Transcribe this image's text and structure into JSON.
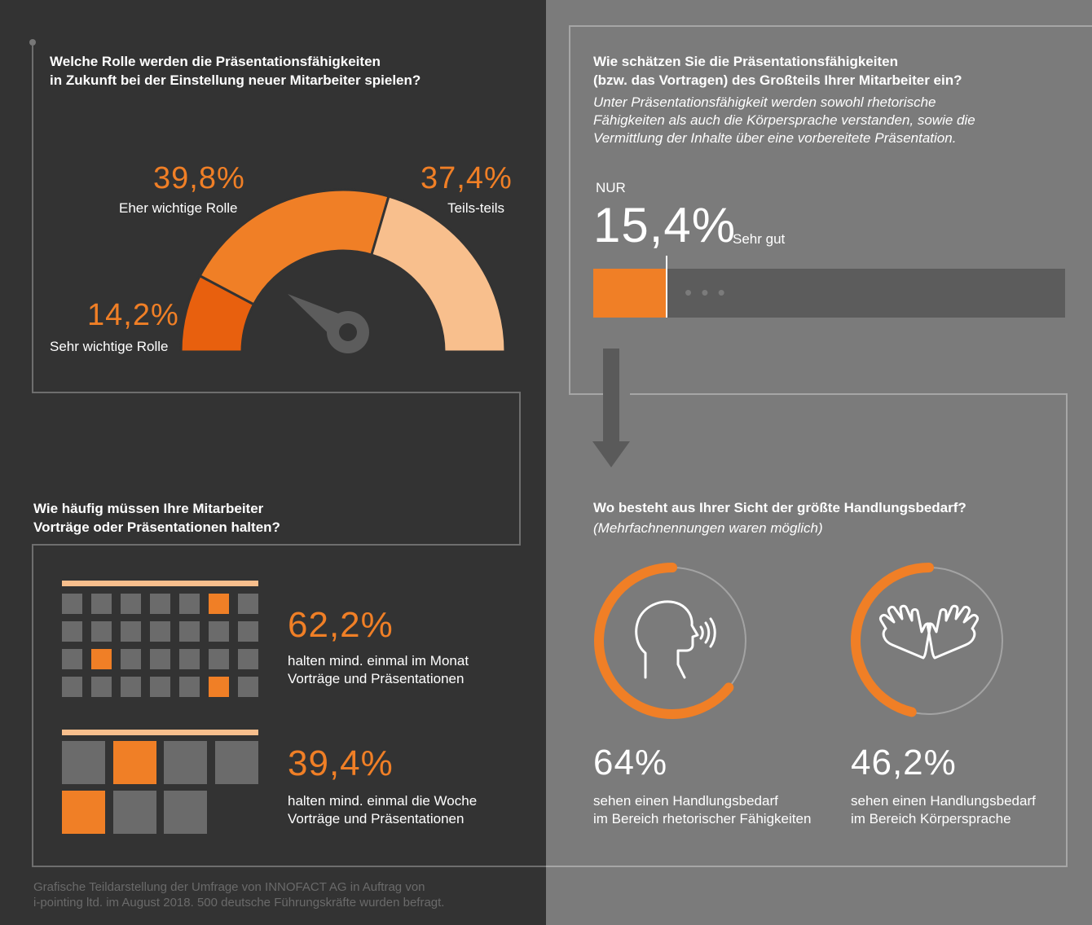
{
  "colors": {
    "orange": "#f07f26",
    "orange_dark": "#e8600e",
    "orange_light": "#f8bf8d",
    "bg_left": "#333333",
    "bg_right": "#7b7b7b",
    "cell_grey": "#6b6b6b"
  },
  "gauge": {
    "question": [
      "Welche Rolle werden die Präsentationsfähigkeiten",
      "in Zukunft bei der Einstellung neuer Mitarbeiter spielen?"
    ],
    "segments": [
      {
        "value": "14,2%",
        "label": "Sehr wichtige Rolle"
      },
      {
        "value": "39,8%",
        "label": "Eher wichtige Rolle"
      },
      {
        "value": "37,4%",
        "label": "Teils-teils"
      }
    ]
  },
  "skills": {
    "question": [
      "Wie schätzen Sie die Präsentationsfähigkeiten",
      "(bzw. das Vortragen) des Großteils Ihrer Mitarbeiter ein?"
    ],
    "note": [
      "Unter Präsentationsfähigkeit werden sowohl rhetorische",
      "Fähigkeiten als auch die Körpersprache verstanden, sowie die",
      "Vermittlung der Inhalte über eine vorbereitete Präsentation."
    ],
    "prefix": "NUR",
    "value": "15,4%",
    "label": "Sehr gut",
    "bar_fraction": 0.154,
    "dots": "• • •"
  },
  "frequency": {
    "question": [
      "Wie häufig müssen Ihre Mitarbeiter",
      "Vorträge oder Präsentationen halten?"
    ],
    "monthly": {
      "value": "62,2%",
      "text": [
        "halten mind. einmal im Monat",
        "Vorträge und Präsentationen"
      ]
    },
    "weekly": {
      "value": "39,4%",
      "text": [
        "halten mind. einmal die Woche",
        "Vorträge und Präsentationen"
      ]
    }
  },
  "need": {
    "question": "Wo besteht aus Ihrer Sicht der größte Handlungsbedarf?",
    "note": "(Mehrfachnennungen waren möglich)",
    "items": [
      {
        "value": "64%",
        "fraction": 0.64,
        "icon": "speaking-head-icon",
        "text": [
          "sehen einen Handlungsbedarf",
          "im Bereich rhetorischer Fähigkeiten"
        ]
      },
      {
        "value": "46,2%",
        "fraction": 0.462,
        "icon": "hands-icon",
        "text": [
          "sehen einen Handlungsbedarf",
          "im Bereich Körpersprache"
        ]
      }
    ]
  },
  "footer": [
    "Grafische Teildarstellung der Umfrage von INNOFACT AG in Auftrag von",
    "i-pointing ltd. im August 2018. 500 deutsche Führungskräfte wurden befragt."
  ]
}
